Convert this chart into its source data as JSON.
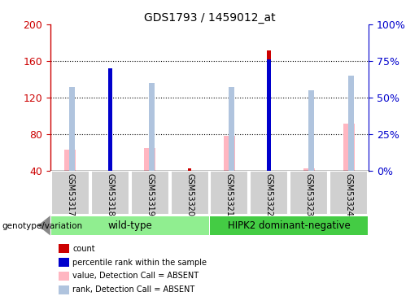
{
  "title": "GDS1793 / 1459012_at",
  "samples": [
    "GSM53317",
    "GSM53318",
    "GSM53319",
    "GSM53320",
    "GSM53321",
    "GSM53322",
    "GSM53323",
    "GSM53324"
  ],
  "count": [
    null,
    123,
    null,
    43,
    null,
    172,
    null,
    null
  ],
  "percentile_rank": [
    null,
    70,
    null,
    null,
    null,
    76,
    null,
    null
  ],
  "value_absent": [
    63,
    null,
    65,
    null,
    78,
    null,
    43,
    92
  ],
  "rank_absent": [
    57,
    null,
    60,
    null,
    57,
    null,
    55,
    65
  ],
  "ylim_left": [
    40,
    200
  ],
  "ylim_right": [
    0,
    100
  ],
  "yticks_left": [
    40,
    80,
    120,
    160,
    200
  ],
  "yticks_right": [
    0,
    25,
    50,
    75,
    100
  ],
  "ylabel_left_color": "#cc0000",
  "ylabel_right_color": "#0000cc",
  "count_color": "#cc0000",
  "percentile_color": "#0000cc",
  "value_absent_color": "#ffb6c1",
  "rank_absent_color": "#b0c4de",
  "group_label": "genotype/variation",
  "wt_color": "#90ee90",
  "hipk_color": "#44cc44"
}
